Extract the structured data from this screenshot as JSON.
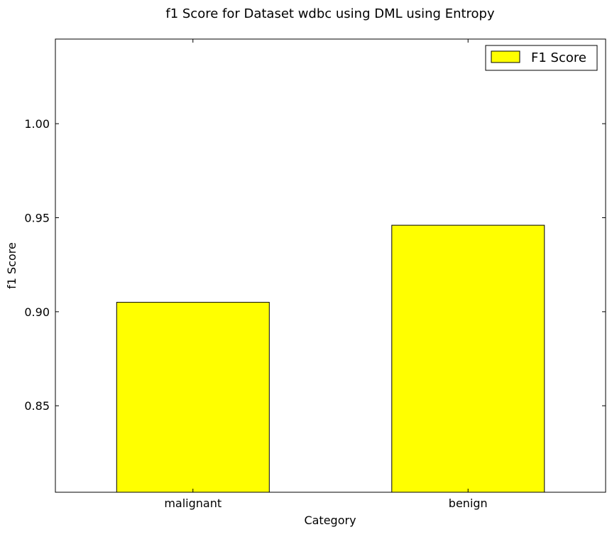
{
  "chart_data": {
    "type": "bar",
    "title": "f1 Score for Dataset wdbc using DML using Entropy",
    "xlabel": "Category",
    "ylabel": "f1 Score",
    "categories": [
      "malignant",
      "benign"
    ],
    "series": [
      {
        "name": "F1 Score",
        "values": [
          0.905,
          0.946
        ]
      }
    ],
    "ylim": [
      0.804,
      1.045
    ],
    "yticks": [
      0.85,
      0.9,
      0.95,
      1.0
    ],
    "ytick_labels": [
      "0.85",
      "0.90",
      "0.95",
      "1.00"
    ],
    "grid": false,
    "legend_position": "top-right",
    "bar_color": "#ffff00",
    "edge_color": "#000000"
  }
}
